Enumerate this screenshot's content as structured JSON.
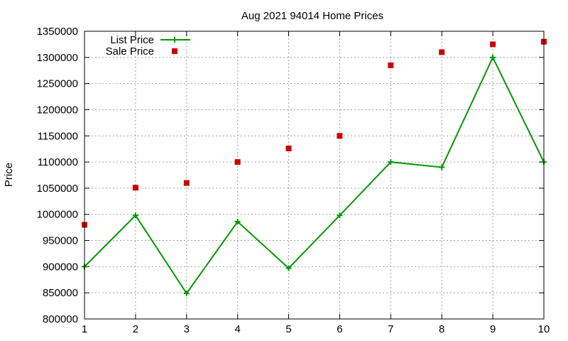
{
  "chart_data": {
    "type": "line",
    "title": "Aug 2021 94014 Home Prices",
    "xlabel": "",
    "ylabel": "Price",
    "x": [
      1,
      2,
      3,
      4,
      5,
      6,
      7,
      8,
      9,
      10
    ],
    "xlim": [
      1,
      10
    ],
    "ylim": [
      800000,
      1350000
    ],
    "yticks": [
      800000,
      850000,
      900000,
      950000,
      1000000,
      1050000,
      1100000,
      1150000,
      1200000,
      1250000,
      1300000,
      1350000
    ],
    "xticks": [
      1,
      2,
      3,
      4,
      5,
      6,
      7,
      8,
      9,
      10
    ],
    "grid": true,
    "legend_position": "top-left",
    "series": [
      {
        "name": "List Price",
        "style": "line-plus",
        "color": "#009900",
        "values": [
          900000,
          998000,
          849000,
          986000,
          897000,
          998000,
          1100000,
          1090000,
          1300000,
          1100000
        ]
      },
      {
        "name": "Sale Price",
        "style": "square-points",
        "color": "#cc0000",
        "values": [
          980000,
          1051000,
          1060000,
          1100000,
          1126000,
          1150000,
          1285000,
          1310000,
          1325000,
          1330000
        ]
      }
    ]
  }
}
